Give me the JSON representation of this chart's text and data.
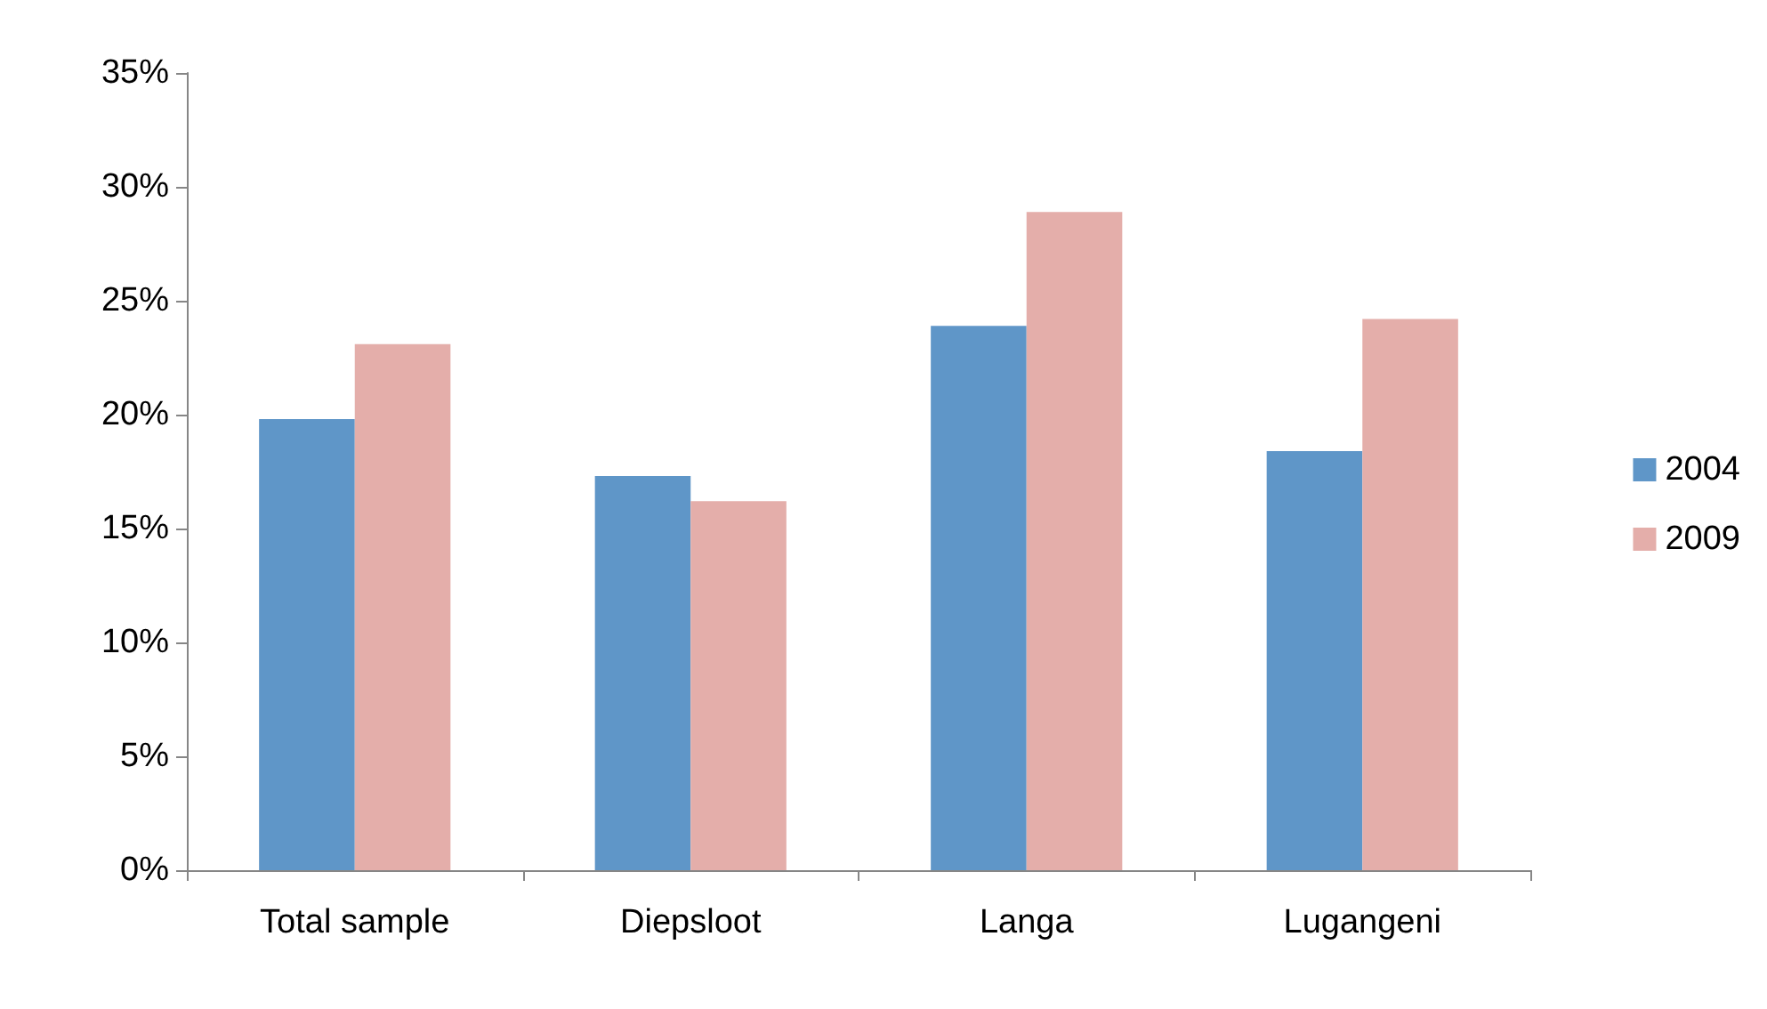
{
  "chart_data": {
    "type": "bar",
    "categories": [
      "Total sample",
      "Diepsloot",
      "Langa",
      "Lugangeni"
    ],
    "series": [
      {
        "name": "2004",
        "color": "#5f96c8",
        "values": [
          19.8,
          17.3,
          23.9,
          18.4
        ]
      },
      {
        "name": "2009",
        "color": "#e4aeaa",
        "values": [
          23.1,
          16.2,
          28.9,
          24.2
        ]
      }
    ],
    "ylim": [
      0,
      35
    ],
    "yticks": [
      {
        "value": 0,
        "label": "0%"
      },
      {
        "value": 5,
        "label": "5%"
      },
      {
        "value": 10,
        "label": "10%"
      },
      {
        "value": 15,
        "label": "15%"
      },
      {
        "value": 20,
        "label": "20%"
      },
      {
        "value": 25,
        "label": "25%"
      },
      {
        "value": 30,
        "label": "30%"
      },
      {
        "value": 35,
        "label": "35%"
      }
    ],
    "grid": false,
    "legend": "right"
  }
}
